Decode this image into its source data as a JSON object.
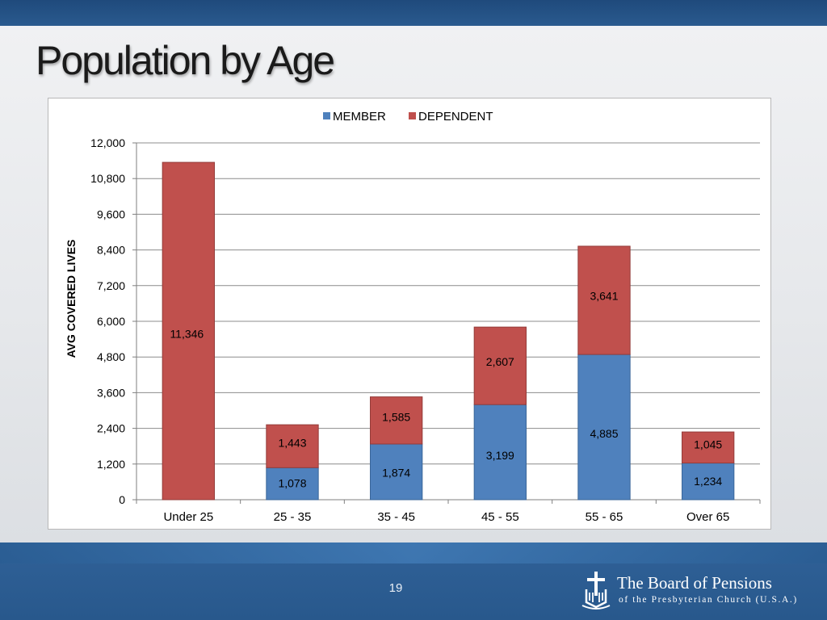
{
  "slide": {
    "title": "Population by Age",
    "page_number": "19",
    "logo_line1": "The Board of Pensions",
    "logo_line2": "of the Presbyterian Church (U.S.A.)"
  },
  "chart_data": {
    "type": "bar",
    "stacked": true,
    "title": "",
    "xlabel": "",
    "ylabel": "AVG COVERED LIVES",
    "ylim": [
      0,
      12000
    ],
    "yticks": [
      0,
      1200,
      2400,
      3600,
      4800,
      6000,
      7200,
      8400,
      9600,
      10800,
      12000
    ],
    "ytick_labels": [
      "0",
      "1,200",
      "2,400",
      "3,600",
      "4,800",
      "6,000",
      "7,200",
      "8,400",
      "9,600",
      "10,800",
      "12,000"
    ],
    "grid": true,
    "legend_position": "top",
    "categories": [
      "Under 25",
      "25 - 35",
      "35 - 45",
      "45 - 55",
      "55 - 65",
      "Over 65"
    ],
    "series": [
      {
        "name": "MEMBER",
        "color": "#4f81bd",
        "values": [
          0,
          1078,
          1874,
          3199,
          4885,
          1234
        ],
        "labels": [
          "",
          "1,078",
          "1,874",
          "3,199",
          "4,885",
          "1,234"
        ]
      },
      {
        "name": "DEPENDENT",
        "color": "#c0504d",
        "values": [
          11346,
          1443,
          1585,
          2607,
          3641,
          1045
        ],
        "labels": [
          "11,346",
          "1,443",
          "1,585",
          "2,607",
          "3,641",
          "1,045"
        ]
      }
    ]
  }
}
